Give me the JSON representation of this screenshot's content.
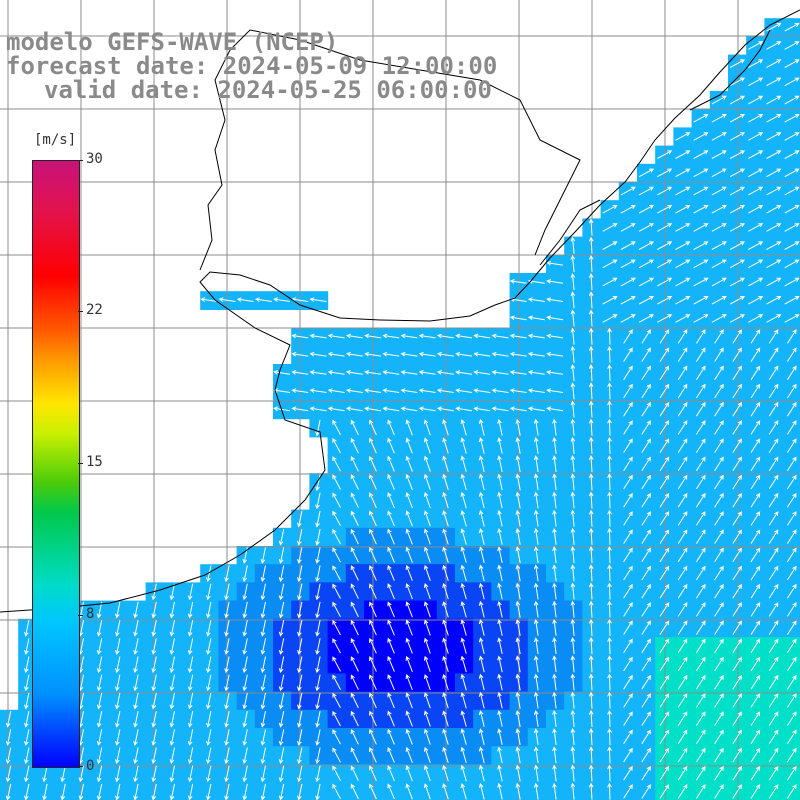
{
  "title": {
    "model": "modelo GEFS-WAVE (NCEP)",
    "forecast": "forecast date: 2024-05-09 12:00:00",
    "valid": "valid date: 2024-05-25 06:00:00"
  },
  "colorbar": {
    "unit": "[m/s]",
    "ticks": [
      "30",
      "22",
      "15",
      "8",
      "0"
    ],
    "tick_values": [
      30,
      22,
      15,
      8,
      0
    ],
    "min": 0,
    "max": 30
  },
  "map": {
    "variable": "wind speed and direction",
    "ocean_colors": [
      "#0000ff",
      "#0a45f5",
      "#0a8cf5",
      "#14b4fa",
      "#00e0c8"
    ],
    "land_color": "#ffffff",
    "grid_color": "#8c8c8c",
    "coast_color": "#000000",
    "arrow_color": "#ffffff"
  }
}
